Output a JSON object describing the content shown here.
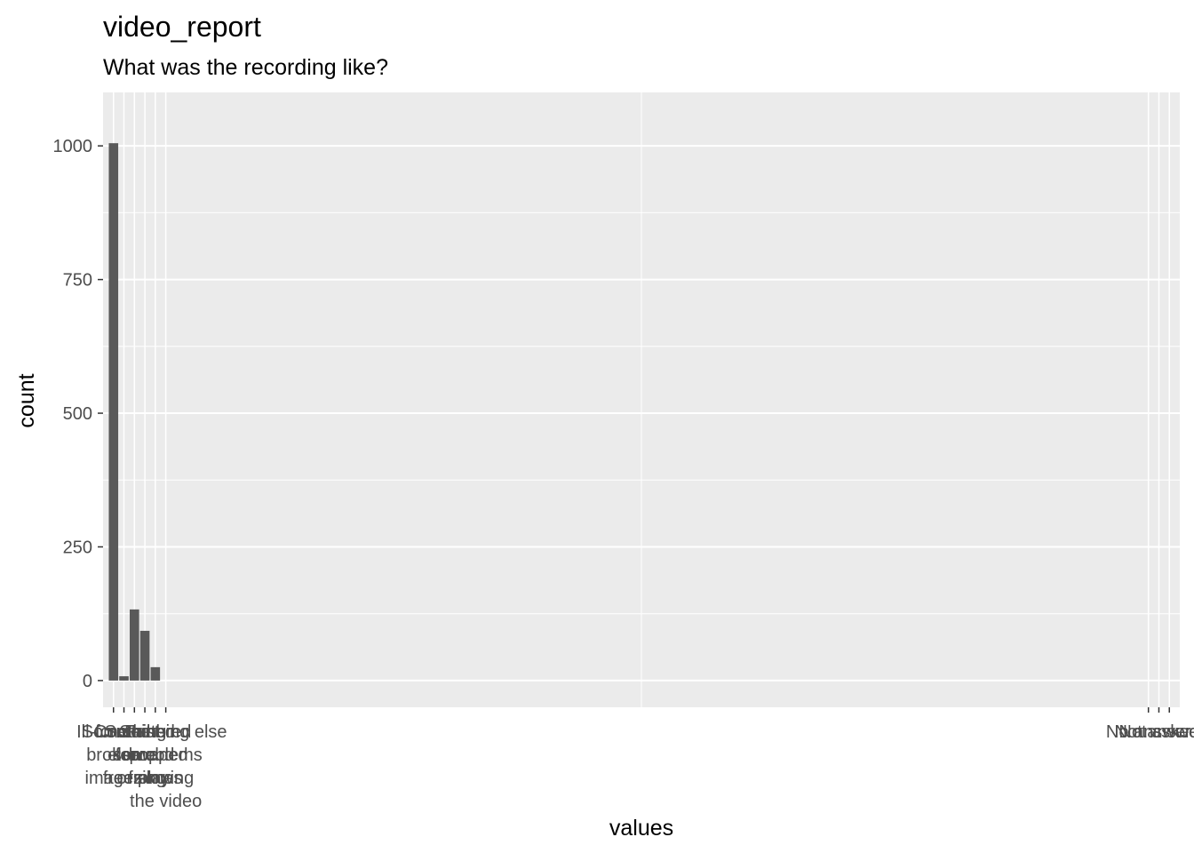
{
  "chart_data": {
    "type": "bar",
    "title": "video_report",
    "subtitle": "What was the recording like?",
    "xlabel": "values",
    "ylabel": "count",
    "ylim": [
      -50,
      1100
    ],
    "y_ticks": [
      0,
      250,
      500,
      750,
      1000
    ],
    "y_tick_labels": [
      "0",
      "250",
      "500",
      "750",
      "1000"
    ],
    "grid": true,
    "x_positions": [
      1,
      2,
      3,
      4,
      5,
      6,
      100,
      101,
      102
    ],
    "x_lim": [
      0,
      103
    ],
    "categories": [
      "Ill-formed or broken images",
      "Something else",
      "Contained some freezing",
      "Fast-forward or slow",
      "Stuttered or dropped frames",
      "Problems playing the video",
      "No answer",
      "Not asked",
      "Not answered"
    ],
    "category_labels": [
      [
        "Ill-formed",
        "broken",
        "images"
      ],
      [
        "Something",
        "else"
      ],
      [
        "Contained",
        "some",
        "freezing"
      ],
      [
        "Fast-",
        "forward",
        "or slow"
      ],
      [
        "Stuttered",
        "dropped",
        "frames"
      ],
      [
        "Something else",
        "problems",
        "playing",
        "the video"
      ],
      [
        "No answer"
      ],
      [
        "Not asked"
      ],
      [
        "Not answered"
      ]
    ],
    "values": [
      1005,
      8,
      133,
      93,
      25,
      0,
      0,
      0,
      0
    ]
  }
}
